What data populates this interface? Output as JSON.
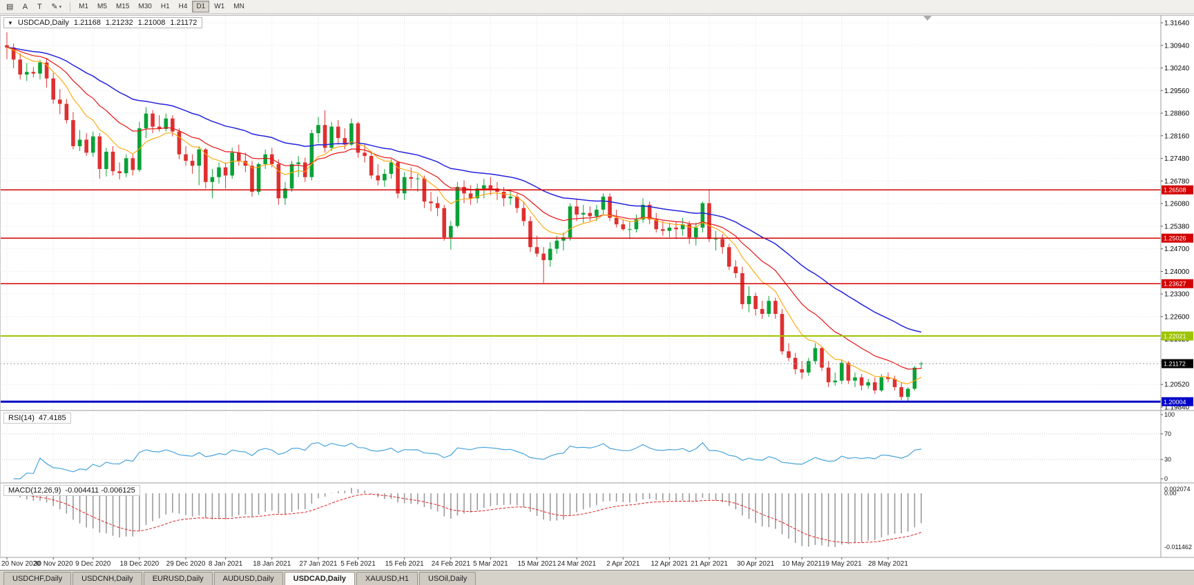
{
  "toolbar": {
    "tools": [
      {
        "name": "charts-menu",
        "glyph": "▤"
      },
      {
        "name": "cursor-mode",
        "glyph": "A"
      },
      {
        "name": "text-tool",
        "glyph": "T"
      },
      {
        "name": "draw-tool",
        "glyph": "✎",
        "dropdown": "▾"
      }
    ],
    "timeframes": [
      {
        "label": "M1"
      },
      {
        "label": "M5"
      },
      {
        "label": "M15"
      },
      {
        "label": "M30"
      },
      {
        "label": "H1"
      },
      {
        "label": "H4"
      },
      {
        "label": "D1",
        "active": true
      },
      {
        "label": "W1"
      },
      {
        "label": "MN"
      }
    ]
  },
  "chart_info": {
    "collapse_icon": "▼",
    "symbol_period": "USDCAD,Daily",
    "open": "1.21168",
    "high": "1.21232",
    "low": "1.21008",
    "close": "1.21172"
  },
  "rsi_box": {
    "title": "RSI(14)",
    "value": "47.4185"
  },
  "macd_box": {
    "title": "MACD(12,26,9)",
    "value": "-0.004411 -0.006125"
  },
  "tabs": [
    {
      "label": "USDCHF,Daily"
    },
    {
      "label": "USDCNH,Daily"
    },
    {
      "label": "EURUSD,Daily"
    },
    {
      "label": "AUDUSD,Daily"
    },
    {
      "label": "USDCAD,Daily",
      "active": true
    },
    {
      "label": "XAUUSD,H1"
    },
    {
      "label": "USOil,Daily"
    }
  ],
  "chart_data": {
    "type": "candlestick",
    "title": "USDCAD,Daily",
    "symbol": "USDCAD",
    "timeframe": "Daily",
    "price_range": {
      "max": 1.3164,
      "min": 1.1984
    },
    "price_axis_ticks": [
      "1.31640",
      "1.30940",
      "1.30240",
      "1.29560",
      "1.28860",
      "1.28160",
      "1.27480",
      "1.26780",
      "1.26080",
      "1.25380",
      "1.24700",
      "1.24000",
      "1.23300",
      "1.22600",
      "1.21920",
      "1.21220",
      "1.20520",
      "1.19840"
    ],
    "x_ticks": [
      "20 Nov 2020",
      "30 Nov 2020",
      "9 Dec 2020",
      "18 Dec 2020",
      "29 Dec 2020",
      "8 Jan 2021",
      "18 Jan 2021",
      "27 Jan 2021",
      "5 Feb 2021",
      "15 Feb 2021",
      "24 Feb 2021",
      "5 Mar 2021",
      "15 Mar 2021",
      "24 Mar 2021",
      "2 Apr 2021",
      "12 Apr 2021",
      "21 Apr 2021",
      "30 Apr 2021",
      "10 May 2021",
      "19 May 2021",
      "28 May 2021"
    ],
    "candle_colors": {
      "up": "#0aa136",
      "down": "#de3030"
    },
    "moving_averages": [
      {
        "name": "ma-slow",
        "period": 40,
        "color": "#2222dd",
        "width": 1.5
      },
      {
        "name": "ma-mid",
        "period": 18,
        "color": "#e81212",
        "width": 1.2
      },
      {
        "name": "ma-fast",
        "period": 9,
        "color": "#ffa500",
        "width": 1.1
      }
    ],
    "hlines": [
      {
        "price": 1.26508,
        "label": "1.26508",
        "color": "#d40000",
        "text_color": "#ffffff",
        "width": 1.5
      },
      {
        "price": 1.25026,
        "label": "1.25026",
        "color": "#d40000",
        "text_color": "#ffffff",
        "width": 1.5
      },
      {
        "price": 1.23627,
        "label": "1.23627",
        "color": "#d40000",
        "text_color": "#ffffff",
        "width": 1.5
      },
      {
        "price": 1.22021,
        "label": "1.22021",
        "color": "#9dc400",
        "text_color": "#ffffff",
        "width": 2
      },
      {
        "price": 1.20004,
        "label": "1.20004",
        "color": "#0000c8",
        "text_color": "#ffffff",
        "width": 3
      }
    ],
    "current_price": {
      "value": 1.21172,
      "label": "1.21172"
    },
    "indicators": [
      {
        "name": "RSI",
        "period": 14,
        "value": 47.4185,
        "color": "#46a3dc",
        "levels": [
          100,
          70,
          30,
          0
        ]
      },
      {
        "name": "MACD",
        "fast": 12,
        "slow": 26,
        "signal": 9,
        "main_value": -0.004411,
        "signal_value": -0.006125,
        "axis": [
          "0.002074",
          "0.00",
          "-0.011462"
        ],
        "histogram_color": "#9a9a9a",
        "signal_color": "#e02020"
      }
    ],
    "candles": [
      [
        1.3095,
        1.3135,
        1.3052,
        1.3088
      ],
      [
        1.3088,
        1.31,
        1.3025,
        1.3051
      ],
      [
        1.3051,
        1.307,
        1.299,
        1.3005
      ],
      [
        1.3005,
        1.304,
        1.2985,
        1.3013
      ],
      [
        1.3013,
        1.3028,
        1.2996,
        1.3008
      ],
      [
        1.3008,
        1.305,
        1.299,
        1.3042
      ],
      [
        1.3042,
        1.3056,
        1.2965,
        1.2993
      ],
      [
        1.2993,
        1.301,
        1.2915,
        1.2928
      ],
      [
        1.2928,
        1.296,
        1.2883,
        1.2915
      ],
      [
        1.2915,
        1.293,
        1.2855,
        1.2865
      ],
      [
        1.2865,
        1.289,
        1.2775,
        1.2785
      ],
      [
        1.2785,
        1.2835,
        1.277,
        1.2805
      ],
      [
        1.2805,
        1.2825,
        1.2755,
        1.2765
      ],
      [
        1.2765,
        1.283,
        1.2752,
        1.2815
      ],
      [
        1.2815,
        1.2825,
        1.2685,
        1.2715
      ],
      [
        1.2715,
        1.278,
        1.2692,
        1.2768
      ],
      [
        1.2768,
        1.2785,
        1.2695,
        1.2708
      ],
      [
        1.2708,
        1.2735,
        1.2683,
        1.2702
      ],
      [
        1.2702,
        1.276,
        1.269,
        1.2748
      ],
      [
        1.2748,
        1.276,
        1.2695,
        1.2712
      ],
      [
        1.2712,
        1.286,
        1.2706,
        1.284
      ],
      [
        1.284,
        1.2905,
        1.281,
        1.2885
      ],
      [
        1.2885,
        1.2895,
        1.2825,
        1.2845
      ],
      [
        1.2845,
        1.288,
        1.283,
        1.2838
      ],
      [
        1.2838,
        1.2885,
        1.283,
        1.287
      ],
      [
        1.287,
        1.288,
        1.2815,
        1.283
      ],
      [
        1.283,
        1.284,
        1.2745,
        1.276
      ],
      [
        1.276,
        1.2785,
        1.2725,
        1.274
      ],
      [
        1.274,
        1.276,
        1.27,
        1.2725
      ],
      [
        1.2725,
        1.2785,
        1.2665,
        1.2775
      ],
      [
        1.2775,
        1.278,
        1.2655,
        1.2675
      ],
      [
        1.2675,
        1.2715,
        1.2625,
        1.269
      ],
      [
        1.269,
        1.2735,
        1.267,
        1.272
      ],
      [
        1.272,
        1.2735,
        1.2655,
        1.2695
      ],
      [
        1.2695,
        1.278,
        1.2685,
        1.2765
      ],
      [
        1.2765,
        1.279,
        1.2725,
        1.274
      ],
      [
        1.274,
        1.2765,
        1.2705,
        1.2725
      ],
      [
        1.2725,
        1.274,
        1.263,
        1.2645
      ],
      [
        1.2645,
        1.2735,
        1.2635,
        1.273
      ],
      [
        1.273,
        1.2775,
        1.2715,
        1.276
      ],
      [
        1.276,
        1.278,
        1.272,
        1.273
      ],
      [
        1.273,
        1.2745,
        1.2605,
        1.2625
      ],
      [
        1.2625,
        1.2675,
        1.2605,
        1.2655
      ],
      [
        1.2655,
        1.274,
        1.2645,
        1.273
      ],
      [
        1.273,
        1.2755,
        1.269,
        1.2735
      ],
      [
        1.2735,
        1.275,
        1.2675,
        1.269
      ],
      [
        1.269,
        1.2835,
        1.268,
        1.2825
      ],
      [
        1.2825,
        1.2875,
        1.2795,
        1.285
      ],
      [
        1.285,
        1.2895,
        1.2765,
        1.278
      ],
      [
        1.278,
        1.286,
        1.277,
        1.2845
      ],
      [
        1.2845,
        1.2865,
        1.279,
        1.281
      ],
      [
        1.281,
        1.284,
        1.2775,
        1.279
      ],
      [
        1.279,
        1.287,
        1.2785,
        1.2855
      ],
      [
        1.2855,
        1.286,
        1.275,
        1.2765
      ],
      [
        1.2765,
        1.279,
        1.2735,
        1.2755
      ],
      [
        1.2755,
        1.277,
        1.2685,
        1.2695
      ],
      [
        1.2695,
        1.273,
        1.2665,
        1.268
      ],
      [
        1.268,
        1.2715,
        1.266,
        1.27
      ],
      [
        1.27,
        1.2745,
        1.2685,
        1.2735
      ],
      [
        1.2735,
        1.274,
        1.2625,
        1.264
      ],
      [
        1.264,
        1.2705,
        1.262,
        1.269
      ],
      [
        1.269,
        1.272,
        1.2655,
        1.2685
      ],
      [
        1.2685,
        1.27,
        1.2645,
        1.2686
      ],
      [
        1.2686,
        1.2695,
        1.2595,
        1.2615
      ],
      [
        1.2615,
        1.2645,
        1.2585,
        1.261
      ],
      [
        1.261,
        1.263,
        1.257,
        1.2595
      ],
      [
        1.2595,
        1.2605,
        1.2495,
        1.2505
      ],
      [
        1.2505,
        1.2555,
        1.2468,
        1.254
      ],
      [
        1.254,
        1.2675,
        1.2535,
        1.266
      ],
      [
        1.266,
        1.268,
        1.261,
        1.264
      ],
      [
        1.264,
        1.2665,
        1.2605,
        1.2625
      ],
      [
        1.2625,
        1.267,
        1.261,
        1.2655
      ],
      [
        1.2655,
        1.2685,
        1.2625,
        1.2665
      ],
      [
        1.2665,
        1.269,
        1.2635,
        1.2655
      ],
      [
        1.2655,
        1.2675,
        1.262,
        1.2645
      ],
      [
        1.2645,
        1.266,
        1.26,
        1.2625
      ],
      [
        1.2625,
        1.265,
        1.2605,
        1.263
      ],
      [
        1.263,
        1.264,
        1.258,
        1.2595
      ],
      [
        1.2595,
        1.2615,
        1.254,
        1.2555
      ],
      [
        1.2555,
        1.257,
        1.246,
        1.2475
      ],
      [
        1.2475,
        1.251,
        1.2445,
        1.2455
      ],
      [
        1.2455,
        1.2475,
        1.2365,
        1.2435
      ],
      [
        1.2435,
        1.249,
        1.2415,
        1.247
      ],
      [
        1.247,
        1.251,
        1.2455,
        1.2495
      ],
      [
        1.2495,
        1.252,
        1.2465,
        1.2505
      ],
      [
        1.2505,
        1.261,
        1.2495,
        1.26
      ],
      [
        1.26,
        1.2625,
        1.2555,
        1.2575
      ],
      [
        1.2575,
        1.2605,
        1.255,
        1.258
      ],
      [
        1.258,
        1.26,
        1.2555,
        1.257
      ],
      [
        1.257,
        1.2605,
        1.2555,
        1.259
      ],
      [
        1.259,
        1.264,
        1.2575,
        1.263
      ],
      [
        1.263,
        1.264,
        1.2555,
        1.2565
      ],
      [
        1.2565,
        1.259,
        1.2535,
        1.2545
      ],
      [
        1.2545,
        1.256,
        1.2525,
        1.253
      ],
      [
        1.253,
        1.2555,
        1.25,
        1.253
      ],
      [
        1.253,
        1.2575,
        1.252,
        1.256
      ],
      [
        1.256,
        1.2625,
        1.255,
        1.2605
      ],
      [
        1.2605,
        1.2615,
        1.2545,
        1.256
      ],
      [
        1.256,
        1.258,
        1.252,
        1.253
      ],
      [
        1.253,
        1.2555,
        1.251,
        1.2525
      ],
      [
        1.2525,
        1.255,
        1.2505,
        1.2535
      ],
      [
        1.2535,
        1.2555,
        1.25,
        1.253
      ],
      [
        1.253,
        1.2565,
        1.251,
        1.2545
      ],
      [
        1.2545,
        1.2555,
        1.2485,
        1.2505
      ],
      [
        1.2505,
        1.255,
        1.248,
        1.2535
      ],
      [
        1.2535,
        1.2615,
        1.252,
        1.261
      ],
      [
        1.261,
        1.265,
        1.249,
        1.25
      ],
      [
        1.25,
        1.2525,
        1.2465,
        1.25
      ],
      [
        1.25,
        1.2515,
        1.2455,
        1.2475
      ],
      [
        1.2475,
        1.2485,
        1.2405,
        1.2415
      ],
      [
        1.2415,
        1.2435,
        1.238,
        1.2395
      ],
      [
        1.2395,
        1.2415,
        1.2285,
        1.23
      ],
      [
        1.23,
        1.2355,
        1.2275,
        1.2325
      ],
      [
        1.2325,
        1.2335,
        1.2265,
        1.2285
      ],
      [
        1.2285,
        1.231,
        1.2255,
        1.227
      ],
      [
        1.227,
        1.2325,
        1.226,
        1.231
      ],
      [
        1.231,
        1.232,
        1.2255,
        1.227
      ],
      [
        1.227,
        1.2285,
        1.2145,
        1.2155
      ],
      [
        1.2155,
        1.218,
        1.2125,
        1.2135
      ],
      [
        1.2135,
        1.215,
        1.2085,
        1.21
      ],
      [
        1.21,
        1.2125,
        1.207,
        1.209
      ],
      [
        1.209,
        1.2135,
        1.208,
        1.2125
      ],
      [
        1.2125,
        1.218,
        1.2115,
        1.2165
      ],
      [
        1.2165,
        1.217,
        1.2095,
        1.2105
      ],
      [
        1.2105,
        1.2125,
        1.2045,
        1.206
      ],
      [
        1.206,
        1.209,
        1.205,
        1.2065
      ],
      [
        1.2065,
        1.213,
        1.2055,
        1.212
      ],
      [
        1.212,
        1.2125,
        1.2055,
        1.2065
      ],
      [
        1.2065,
        1.209,
        1.2045,
        1.2075
      ],
      [
        1.2075,
        1.2085,
        1.2035,
        1.205
      ],
      [
        1.205,
        1.207,
        1.204,
        1.206
      ],
      [
        1.206,
        1.2075,
        1.2025,
        1.2035
      ],
      [
        1.2035,
        1.2085,
        1.203,
        1.2075
      ],
      [
        1.2075,
        1.209,
        1.206,
        1.207
      ],
      [
        1.207,
        1.208,
        1.2035,
        1.2045
      ],
      [
        1.2045,
        1.206,
        1.2005,
        1.2015
      ],
      [
        1.2015,
        1.2045,
        1.2,
        1.204
      ],
      [
        1.204,
        1.211,
        1.2035,
        1.2105
      ],
      [
        1.21168,
        1.21232,
        1.21008,
        1.21172
      ]
    ]
  }
}
